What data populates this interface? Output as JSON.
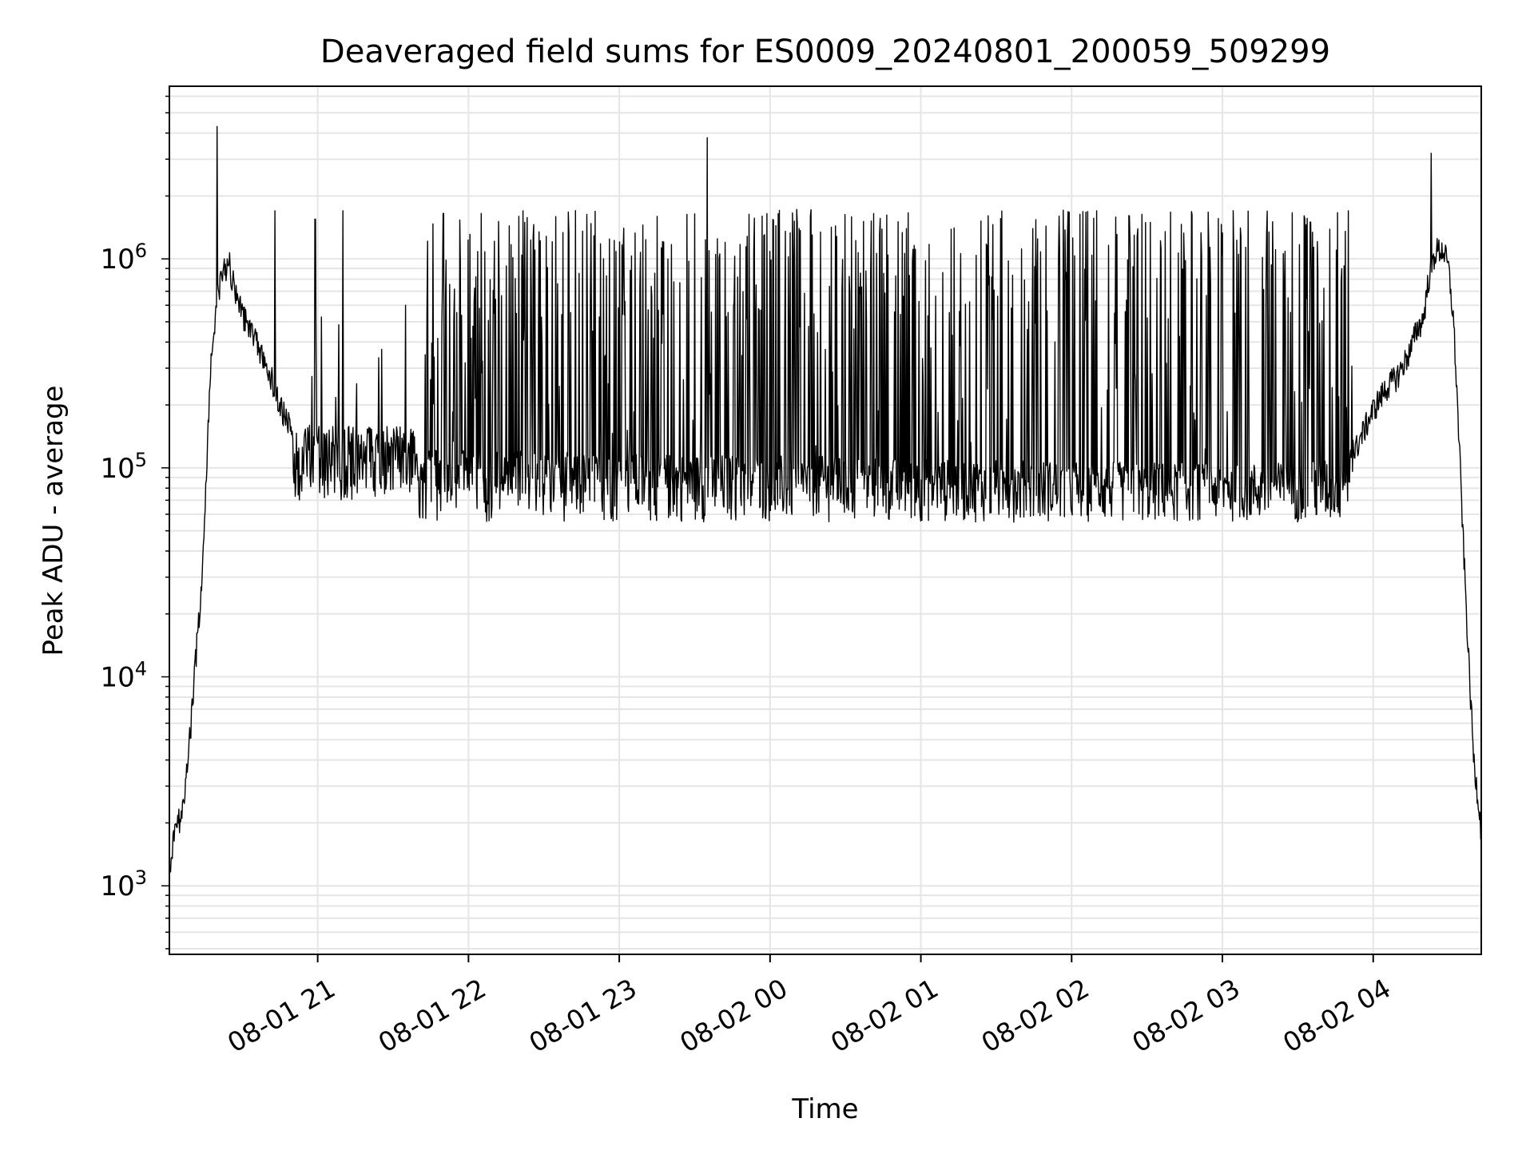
{
  "chart_data": {
    "type": "line",
    "title": "Deaveraged field sums for ES0009_20240801_200059_509299",
    "xlabel": "Time",
    "ylabel": "Peak ADU - average",
    "y_scale": "log",
    "ylim": [
      470,
      6700000
    ],
    "xlim": [
      "2024-08-01 20:00:59",
      "2024-08-02 04:43:00"
    ],
    "grid": true,
    "line_color": "#000000",
    "grid_color": "#e5e5e5",
    "x_ticks": [
      {
        "value": "2024-08-01 21:00",
        "label": "08-01 21"
      },
      {
        "value": "2024-08-01 22:00",
        "label": "08-01 22"
      },
      {
        "value": "2024-08-01 23:00",
        "label": "08-01 23"
      },
      {
        "value": "2024-08-02 00:00",
        "label": "08-02 00"
      },
      {
        "value": "2024-08-02 01:00",
        "label": "08-02 01"
      },
      {
        "value": "2024-08-02 02:00",
        "label": "08-02 02"
      },
      {
        "value": "2024-08-02 03:00",
        "label": "08-02 03"
      },
      {
        "value": "2024-08-02 04:00",
        "label": "08-02 04"
      }
    ],
    "y_ticks": [
      {
        "value": 1000,
        "base": "10",
        "exp": "3"
      },
      {
        "value": 10000,
        "base": "10",
        "exp": "4"
      },
      {
        "value": 100000,
        "base": "10",
        "exp": "5"
      },
      {
        "value": 1000000,
        "base": "10",
        "exp": "6"
      }
    ],
    "series": [
      {
        "x": [
          "2024-08-01 20:00:59",
          "2024-08-01 20:02:00",
          "2024-08-01 20:04:00",
          "2024-08-01 20:06:00",
          "2024-08-01 20:08:00",
          "2024-08-01 20:10:00",
          "2024-08-01 20:12:00",
          "2024-08-01 20:14:00",
          "2024-08-01 20:16:00",
          "2024-08-01 20:18:00",
          "2024-08-01 20:20:00",
          "2024-08-01 20:22:00",
          "2024-08-01 20:24:00",
          "2024-08-01 20:25:00",
          "2024-08-01 20:26:00",
          "2024-08-01 20:28:00",
          "2024-08-01 20:30:00",
          "2024-08-01 20:34:00",
          "2024-08-01 20:38:00",
          "2024-08-01 20:42:00",
          "2024-08-01 20:46:00",
          "2024-08-01 20:50:00",
          "2024-08-01 20:55:00",
          "2024-08-01 21:00:00",
          "2024-08-01 21:05:00",
          "2024-08-01 21:10:00",
          "2024-08-01 21:20:00",
          "2024-08-01 21:30:00",
          "2024-08-01 21:40:00",
          "2024-08-01 22:00:00",
          "2024-08-01 22:30:00",
          "2024-08-01 23:00:00",
          "2024-08-01 23:30:00",
          "2024-08-02 00:00:00",
          "2024-08-02 00:30:00",
          "2024-08-02 01:00:00",
          "2024-08-02 01:30:00",
          "2024-08-02 02:00:00",
          "2024-08-02 02:30:00",
          "2024-08-02 03:00:00",
          "2024-08-02 03:30:00",
          "2024-08-02 03:45:00",
          "2024-08-02 03:50:00",
          "2024-08-02 03:55:00",
          "2024-08-02 04:00:00",
          "2024-08-02 04:05:00",
          "2024-08-02 04:10:00",
          "2024-08-02 04:15:00",
          "2024-08-02 04:17:00",
          "2024-08-02 04:20:00",
          "2024-08-02 04:22:00",
          "2024-08-02 04:25:00",
          "2024-08-02 04:28:00",
          "2024-08-02 04:30:00",
          "2024-08-02 04:32:00",
          "2024-08-02 04:34:00",
          "2024-08-02 04:36:00",
          "2024-08-02 04:38:00",
          "2024-08-02 04:40:00",
          "2024-08-02 04:42:00",
          "2024-08-02 04:43:00"
        ],
        "values": [
          1100,
          1500,
          2000,
          2200,
          3500,
          7000,
          15000,
          30000,
          120000,
          400000,
          650000,
          850000,
          900000,
          950000,
          800000,
          650000,
          550000,
          450000,
          350000,
          260000,
          190000,
          145000,
          115000,
          100000,
          98000,
          97000,
          96000,
          95000,
          94000,
          93000,
          92000,
          90000,
          90000,
          89000,
          87000,
          85000,
          84000,
          83000,
          82000,
          81000,
          82000,
          85000,
          100000,
          140000,
          190000,
          240000,
          280000,
          370000,
          450000,
          520000,
          800000,
          1100000,
          1100000,
          900000,
          500000,
          150000,
          40000,
          12000,
          4000,
          2500,
          1800
        ]
      }
    ],
    "noise_band": [
      {
        "start": "2024-08-01 20:50:00",
        "end": "2024-08-01 21:40:00",
        "low": 70000,
        "high": 160000
      },
      {
        "start": "2024-08-01 21:40:00",
        "end": "2024-08-02 03:52:00",
        "low": 55000,
        "high": 1500000
      }
    ],
    "spikes": [
      {
        "x": "2024-08-01 20:20:00",
        "value": 4300000
      },
      {
        "x": "2024-08-01 23:35:00",
        "value": 3800000
      },
      {
        "x": "2024-08-02 04:23:00",
        "value": 3200000
      },
      {
        "x": "2024-08-01 20:43:00",
        "value": 1700000
      },
      {
        "x": "2024-08-01 20:59:00",
        "value": 1550000
      },
      {
        "x": "2024-08-01 21:10:00",
        "value": 1700000
      },
      {
        "x": "2024-08-01 21:35:00",
        "value": 600000
      },
      {
        "x": "2024-08-01 21:50:00",
        "value": 1650000
      },
      {
        "x": "2024-08-01 22:05:00",
        "value": 1650000
      },
      {
        "x": "2024-08-01 22:20:00",
        "value": 1600000
      },
      {
        "x": "2024-08-02 02:10:00",
        "value": 1700000
      },
      {
        "x": "2024-08-02 03:35:00",
        "value": 1500000
      },
      {
        "x": "2024-08-02 03:50:00",
        "value": 1700000
      }
    ]
  }
}
